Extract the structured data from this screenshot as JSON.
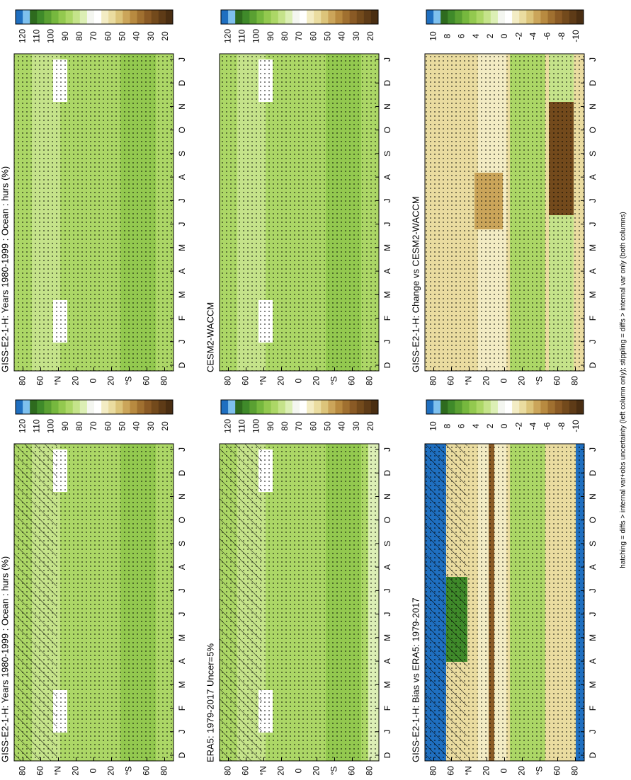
{
  "panels": [
    {
      "title": "GISS-E2-1-H: Years 1980-1999 : Ocean : hurs (%)"
    },
    {
      "title": "GISS-E2-1-H: Years 1980-1999 : Ocean : hurs (%)"
    },
    {
      "title": "ERA5: 1979-2017 Uncer=5%"
    },
    {
      "title": "CESM2-WACCM"
    },
    {
      "title": "GISS-E2-1-H: Bias vs ERA5: 1979-2017"
    },
    {
      "title": "GISS-E2-1-H: Change vs CESM2-WACCM"
    }
  ],
  "month_labels": [
    "D",
    "J",
    "F",
    "M",
    "A",
    "M",
    "J",
    "J",
    "A",
    "S",
    "O",
    "N",
    "D",
    "J"
  ],
  "latitude_labels": [
    "80",
    "60",
    "°N",
    "20",
    "0",
    "20",
    "°S",
    "60",
    "80"
  ],
  "colorbar_absolute": [
    120,
    110,
    100,
    90,
    80,
    70,
    60,
    50,
    40,
    30,
    20
  ],
  "colorbar_difference": [
    10,
    8,
    6,
    4,
    2,
    0,
    -2,
    -4,
    -6,
    -8,
    -10
  ],
  "footnote": "hatching = diffs > internal var+obs uncertainty (left column only); stippling = diffs > internal var only (both columns)"
}
